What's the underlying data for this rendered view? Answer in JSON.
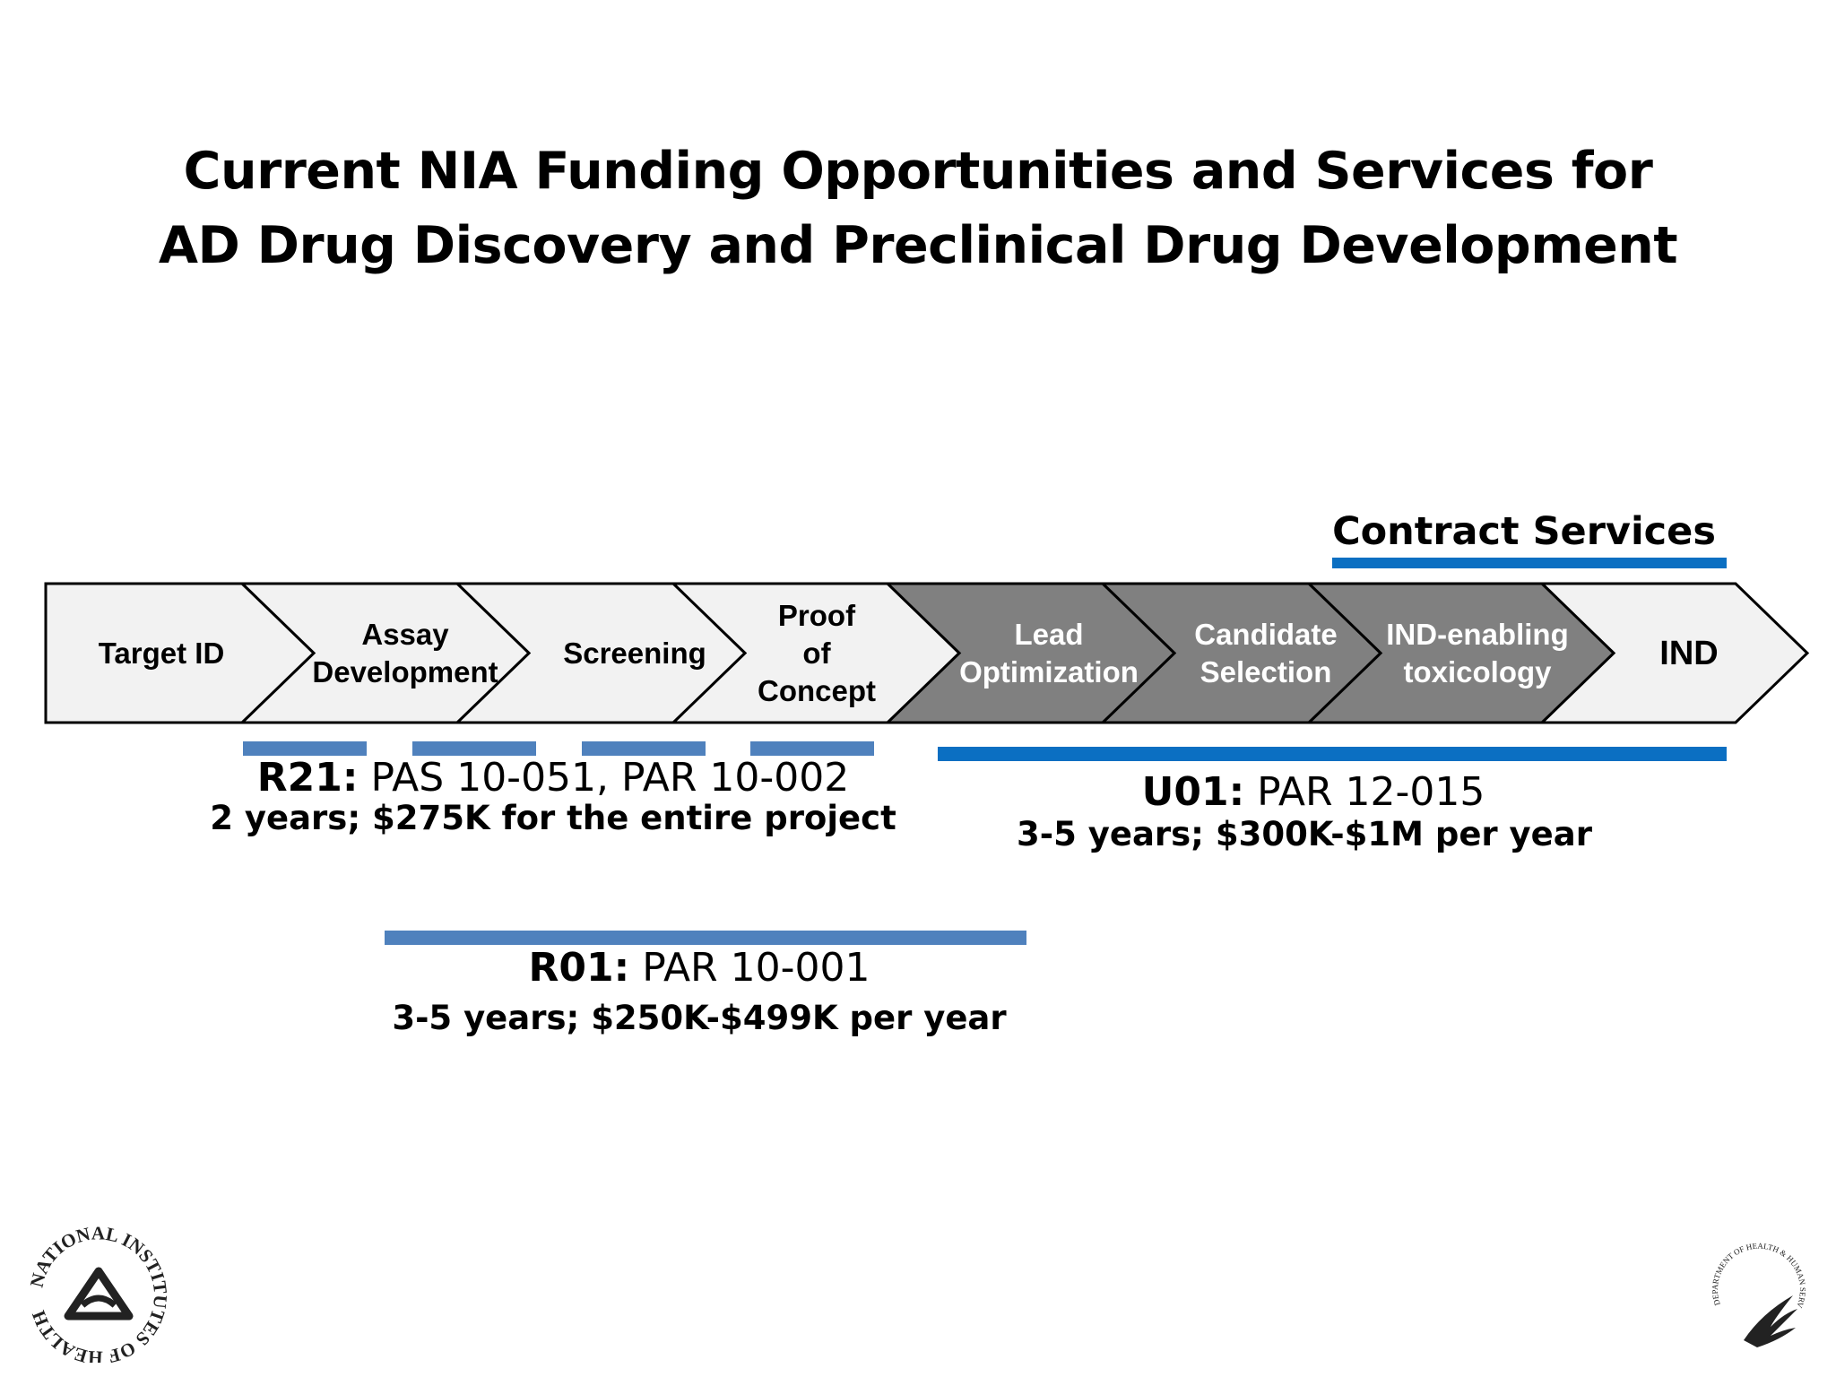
{
  "title": {
    "line1": "Current NIA Funding Opportunities and Services for",
    "line2": "AD Drug Discovery and Preclinical Drug Development"
  },
  "contract_services": {
    "label": "Contract Services"
  },
  "stages": [
    {
      "name": "target-id",
      "lines": [
        "Target ID"
      ],
      "shaded": false
    },
    {
      "name": "assay-development",
      "lines": [
        "Assay",
        "Development"
      ],
      "shaded": false
    },
    {
      "name": "screening",
      "lines": [
        "Screening"
      ],
      "shaded": false
    },
    {
      "name": "proof-of-concept",
      "lines": [
        "Proof",
        "of",
        "Concept"
      ],
      "shaded": false
    },
    {
      "name": "lead-optimization",
      "lines": [
        "Lead",
        "Optimization"
      ],
      "shaded": true
    },
    {
      "name": "candidate-selection",
      "lines": [
        "Candidate",
        "Selection"
      ],
      "shaded": true
    },
    {
      "name": "ind-enabling-toxicology",
      "lines": [
        "IND-enabling",
        "toxicology"
      ],
      "shaded": true
    },
    {
      "name": "ind",
      "lines": [
        "IND"
      ],
      "shaded": false
    }
  ],
  "grants": {
    "r21": {
      "code": "R21:",
      "announcement": " PAS 10-051, PAR 10-002",
      "terms": "2 years; $275K for the entire project"
    },
    "u01": {
      "code": "U01:",
      "announcement": " PAR 12-015",
      "terms": "3-5 years; $300K-$1M per year"
    },
    "r01": {
      "code": "R01:",
      "announcement": " PAR 10-001",
      "terms": "3-5 years; $250K-$499K per year"
    }
  },
  "colors": {
    "light_fill": "#f2f2f2",
    "dark_fill": "#808080",
    "bar_blue": "#4f81bd",
    "strong_blue": "#0b6fc2"
  },
  "logos": {
    "nih": "NATIONAL INSTITUTES OF HEALTH",
    "hhs": "DEPARTMENT OF HEALTH & HUMAN SERVICES USA"
  }
}
